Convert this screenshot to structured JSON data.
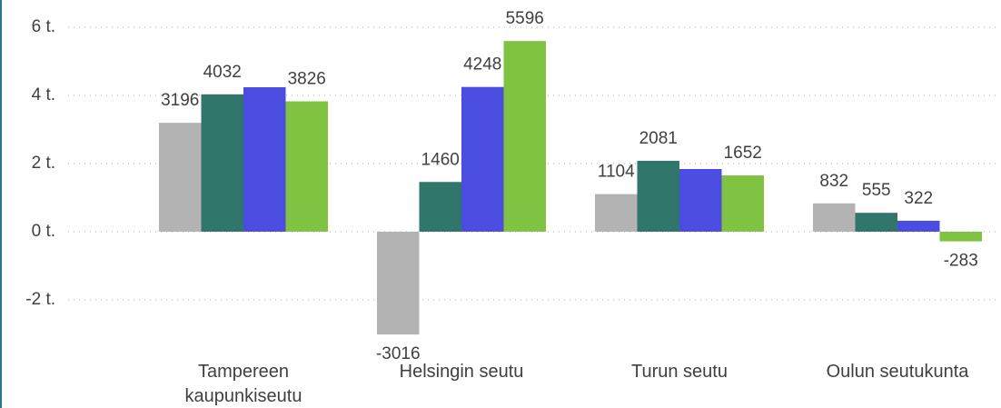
{
  "chart_data": {
    "type": "bar",
    "categories": [
      "Tampereen kaupunkiseutu",
      "Helsingin seutu",
      "Turun seutu",
      "Oulun seutukunta"
    ],
    "series": [
      {
        "color": "#b3b3b3",
        "values": [
          3196,
          -3016,
          1104,
          832
        ],
        "value_labels": [
          "3196",
          "-3016",
          "1104",
          "832"
        ]
      },
      {
        "color": "#31766a",
        "values": [
          4032,
          1460,
          2081,
          555
        ],
        "value_labels": [
          "4032",
          "1460",
          "2081",
          "555"
        ]
      },
      {
        "color": "#4b4de0",
        "values": [
          4240,
          4248,
          1840,
          322
        ],
        "value_labels": [
          null,
          "4248",
          null,
          "322"
        ]
      },
      {
        "color": "#80c242",
        "values": [
          3826,
          5596,
          1652,
          -283
        ],
        "value_labels": [
          "3826",
          "5596",
          "1652",
          "-283"
        ]
      }
    ],
    "ylim": [
      -3200,
      6400
    ],
    "yticks": [
      {
        "value": -2000,
        "label": "-2 t."
      },
      {
        "value": 0,
        "label": "0 t."
      },
      {
        "value": 2000,
        "label": "2 t."
      },
      {
        "value": 4000,
        "label": "4 t."
      },
      {
        "value": 6000,
        "label": "6 t."
      }
    ],
    "grid": true
  }
}
